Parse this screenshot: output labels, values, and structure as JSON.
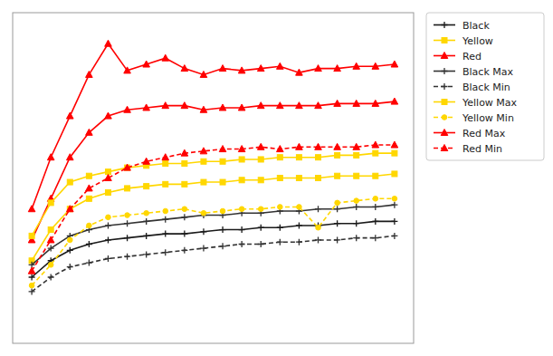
{
  "chart_data": {
    "type": "line",
    "x": [
      5,
      10,
      15,
      20,
      25,
      30,
      35,
      40,
      45,
      50,
      55,
      60,
      65,
      70,
      75,
      80,
      85,
      90,
      95,
      100
    ],
    "xlim": [
      0,
      105
    ],
    "ylim": [
      0,
      16
    ],
    "xticks": [],
    "yticks": [],
    "tick_labels": false,
    "grid": false,
    "legend": "right",
    "series": [
      {
        "name": "Black",
        "color": "#1a1a1a",
        "marker": "plus",
        "line_style": "solid",
        "values": [
          3.2,
          4.0,
          4.5,
          4.8,
          5.0,
          5.1,
          5.2,
          5.3,
          5.3,
          5.4,
          5.5,
          5.5,
          5.6,
          5.6,
          5.7,
          5.7,
          5.8,
          5.8,
          5.9,
          5.9
        ]
      },
      {
        "name": "Yellow",
        "color": "#FFD700",
        "marker": "square",
        "line_style": "solid",
        "values": [
          4.0,
          5.5,
          6.5,
          7.0,
          7.3,
          7.5,
          7.6,
          7.7,
          7.7,
          7.8,
          7.8,
          7.9,
          7.9,
          8.0,
          8.0,
          8.0,
          8.1,
          8.1,
          8.1,
          8.2
        ]
      },
      {
        "name": "Red",
        "color": "#FF0000",
        "marker": "triangle",
        "line_style": "solid",
        "values": [
          5.0,
          7.0,
          9.0,
          10.2,
          11.0,
          11.3,
          11.4,
          11.5,
          11.5,
          11.3,
          11.4,
          11.4,
          11.5,
          11.5,
          11.5,
          11.5,
          11.6,
          11.6,
          11.6,
          11.7
        ]
      },
      {
        "name": "Black Max",
        "color": "#333333",
        "marker": "plus",
        "line_style": "solid",
        "values": [
          3.8,
          4.6,
          5.2,
          5.5,
          5.7,
          5.8,
          5.9,
          6.0,
          6.1,
          6.2,
          6.2,
          6.3,
          6.3,
          6.4,
          6.4,
          6.5,
          6.5,
          6.6,
          6.6,
          6.7
        ]
      },
      {
        "name": "Black Min",
        "color": "#333333",
        "marker": "plus",
        "line_style": "dashed",
        "values": [
          2.5,
          3.2,
          3.7,
          3.9,
          4.1,
          4.2,
          4.3,
          4.4,
          4.5,
          4.6,
          4.7,
          4.8,
          4.8,
          4.9,
          4.9,
          5.0,
          5.0,
          5.1,
          5.1,
          5.2
        ]
      },
      {
        "name": "Yellow Max",
        "color": "#FFD700",
        "marker": "square",
        "line_style": "solid",
        "values": [
          5.2,
          6.8,
          7.8,
          8.1,
          8.3,
          8.5,
          8.6,
          8.7,
          8.7,
          8.8,
          8.8,
          8.9,
          8.9,
          9.0,
          9.0,
          9.0,
          9.1,
          9.1,
          9.2,
          9.2
        ]
      },
      {
        "name": "Yellow Min",
        "color": "#FFD700",
        "marker": "circle",
        "line_style": "dashed",
        "values": [
          2.8,
          3.8,
          5.0,
          5.7,
          6.1,
          6.2,
          6.3,
          6.4,
          6.5,
          6.3,
          6.4,
          6.5,
          6.5,
          6.6,
          6.6,
          5.6,
          6.8,
          6.9,
          7.0,
          7.0
        ]
      },
      {
        "name": "Red Max",
        "color": "#FF0000",
        "marker": "triangle",
        "line_style": "solid",
        "values": [
          6.5,
          9.0,
          11.0,
          13.0,
          14.5,
          13.2,
          13.5,
          13.8,
          13.3,
          13.0,
          13.3,
          13.2,
          13.3,
          13.4,
          13.1,
          13.3,
          13.3,
          13.4,
          13.4,
          13.5
        ]
      },
      {
        "name": "Red Min",
        "color": "#FF0000",
        "marker": "triangle",
        "line_style": "dashed",
        "values": [
          3.5,
          5.0,
          6.5,
          7.5,
          8.0,
          8.5,
          8.8,
          9.0,
          9.2,
          9.3,
          9.4,
          9.4,
          9.5,
          9.4,
          9.5,
          9.5,
          9.5,
          9.5,
          9.6,
          9.6
        ]
      }
    ]
  }
}
